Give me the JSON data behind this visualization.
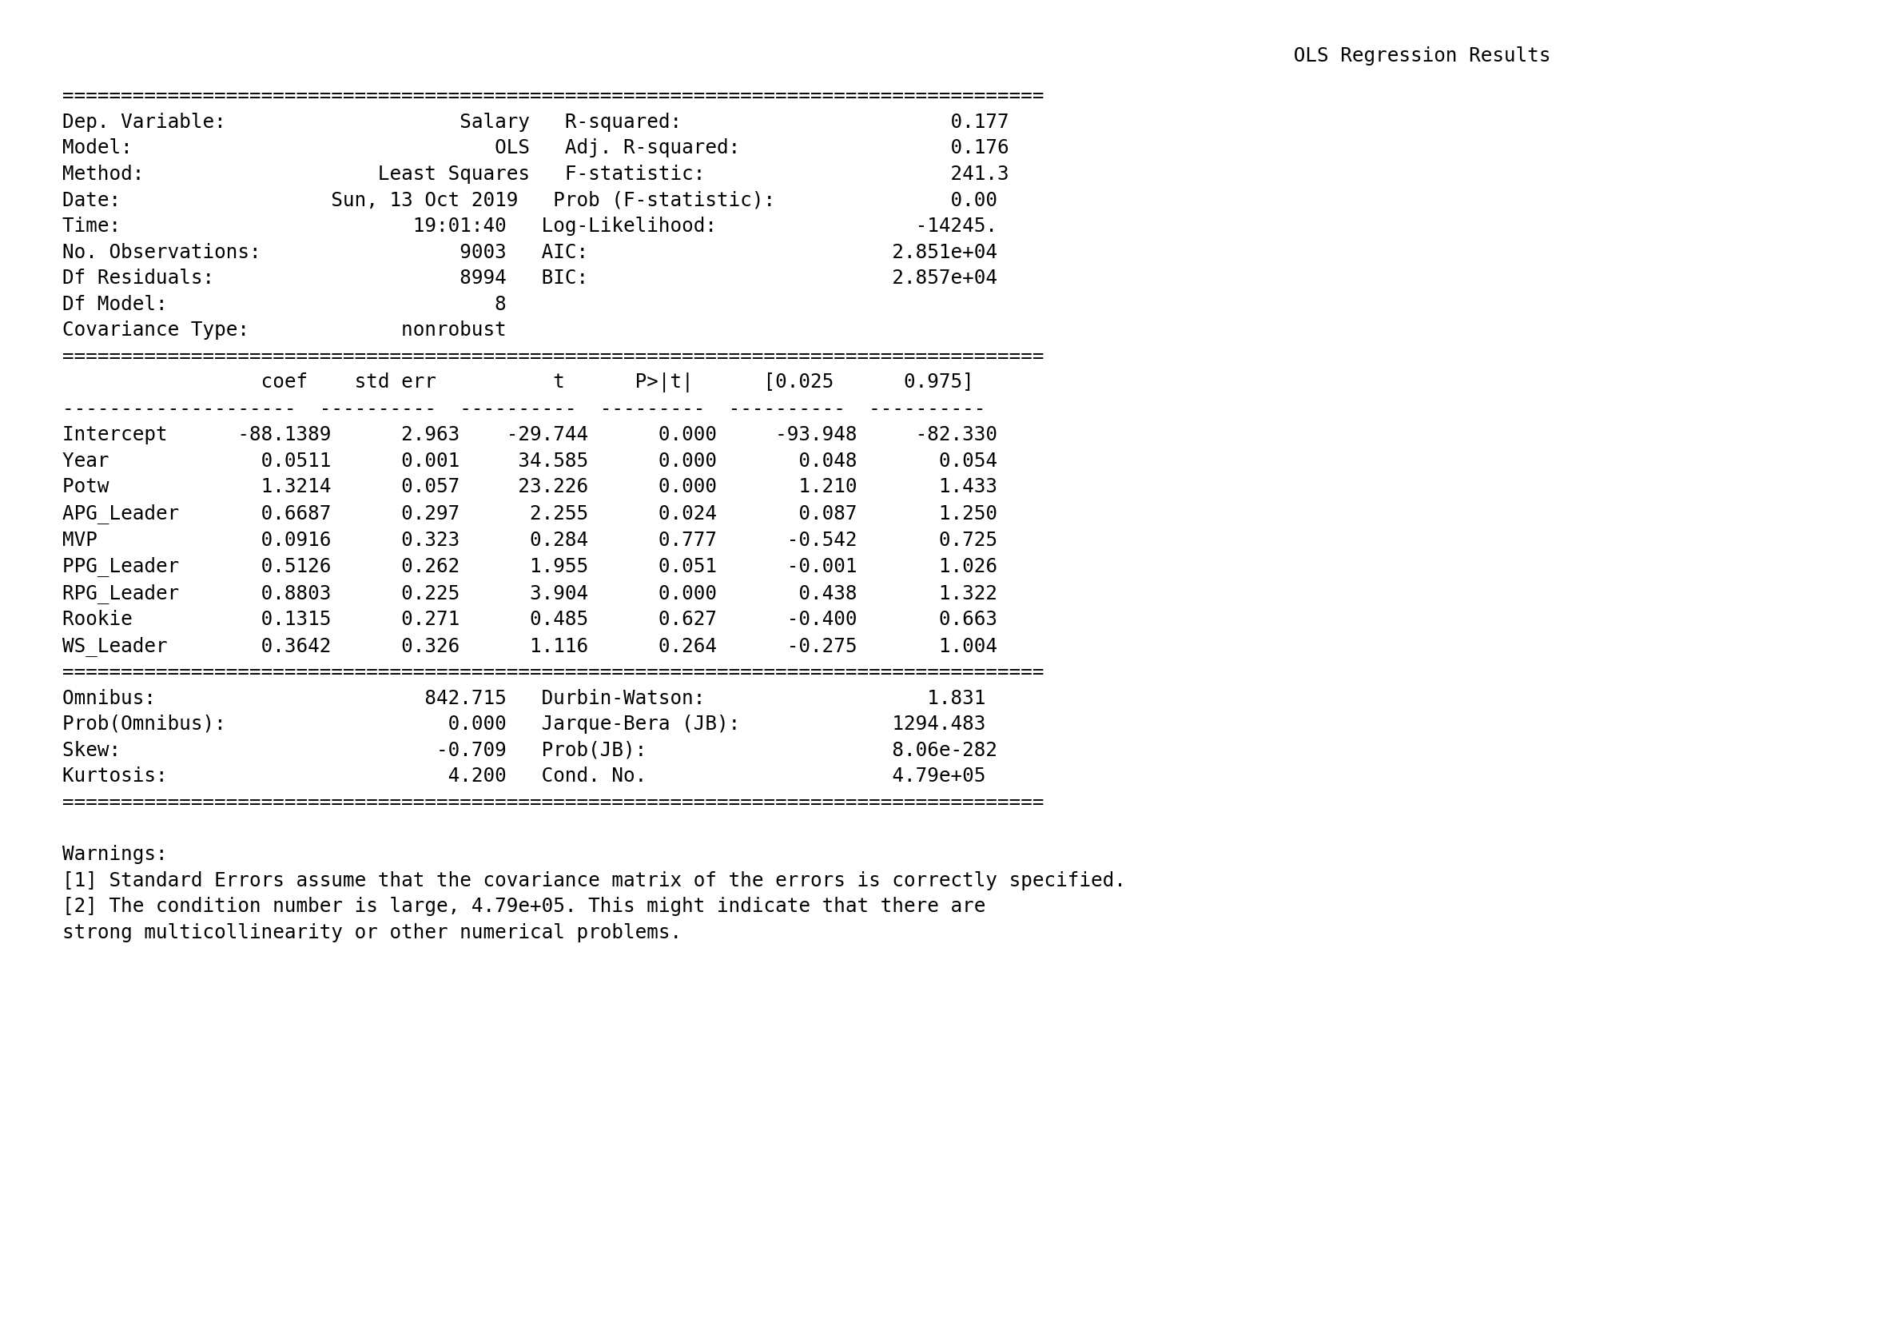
{
  "title": "                              OLS Regression Results",
  "background_color": "#ffffff",
  "text_color": "#000000",
  "font_family": "DejaVu Sans Mono",
  "font_size": 17.5,
  "content": [
    "====================================================================================",
    "Dep. Variable:                    Salary   R-squared:                       0.177",
    "Model:                               OLS   Adj. R-squared:                  0.176",
    "Method:                    Least Squares   F-statistic:                     241.3",
    "Date:                  Sun, 13 Oct 2019   Prob (F-statistic):               0.00",
    "Time:                         19:01:40   Log-Likelihood:                 -14245.",
    "No. Observations:                 9003   AIC:                          2.851e+04",
    "Df Residuals:                     8994   BIC:                          2.857e+04",
    "Df Model:                            8",
    "Covariance Type:             nonrobust",
    "====================================================================================",
    "                 coef    std err          t      P>|t|      [0.025      0.975]",
    "--------------------  ----------  ----------  ---------  ----------  ----------",
    "Intercept      -88.1389      2.963    -29.744      0.000     -93.948     -82.330",
    "Year             0.0511      0.001     34.585      0.000       0.048       0.054",
    "Potw             1.3214      0.057     23.226      0.000       1.210       1.433",
    "APG_Leader       0.6687      0.297      2.255      0.024       0.087       1.250",
    "MVP              0.0916      0.323      0.284      0.777      -0.542       0.725",
    "PPG_Leader       0.5126      0.262      1.955      0.051      -0.001       1.026",
    "RPG_Leader       0.8803      0.225      3.904      0.000       0.438       1.322",
    "Rookie           0.1315      0.271      0.485      0.627      -0.400       0.663",
    "WS_Leader        0.3642      0.326      1.116      0.264      -0.275       1.004",
    "====================================================================================",
    "Omnibus:                       842.715   Durbin-Watson:                   1.831",
    "Prob(Omnibus):                   0.000   Jarque-Bera (JB):             1294.483",
    "Skew:                           -0.709   Prob(JB):                     8.06e-282",
    "Kurtosis:                        4.200   Cond. No.                     4.79e+05",
    "====================================================================================",
    "",
    "Warnings:",
    "[1] Standard Errors assume that the covariance matrix of the errors is correctly specified.",
    "[2] The condition number is large, 4.79e+05. This might indicate that there are",
    "strong multicollinearity or other numerical problems."
  ]
}
